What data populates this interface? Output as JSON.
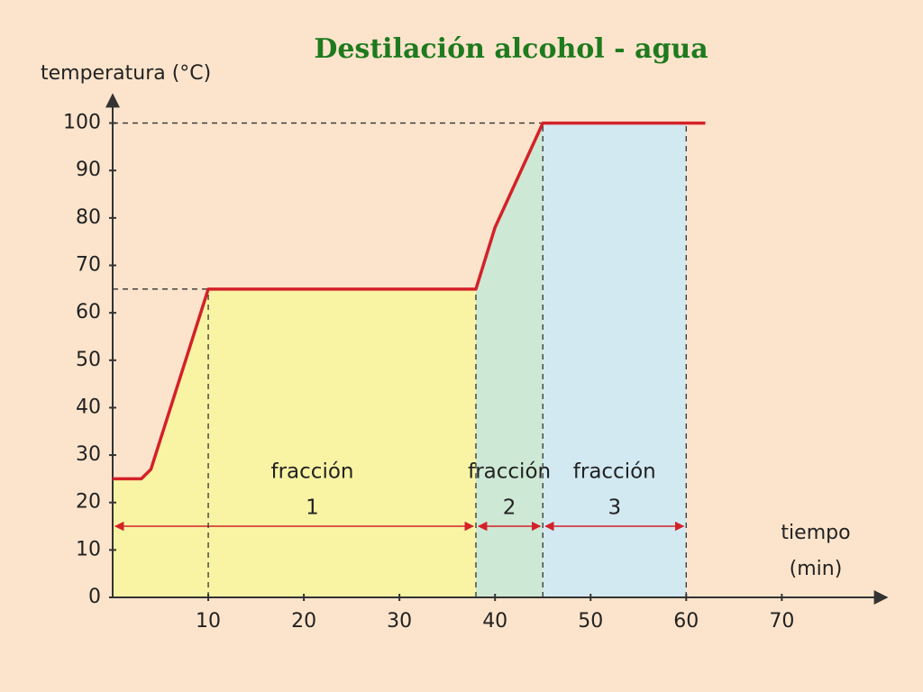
{
  "chart_data": {
    "type": "line",
    "title": "Destilación alcohol - agua",
    "y_label": "temperatura (°C)",
    "x_label": [
      "tiempo",
      "(min)"
    ],
    "x": [
      0,
      3,
      4,
      10,
      38,
      40,
      45,
      62
    ],
    "series": [
      {
        "name": "temperatura",
        "color": "#d42128",
        "values": [
          25,
          25,
          27,
          65,
          65,
          78,
          100,
          100
        ]
      }
    ],
    "xlim": [
      0,
      81
    ],
    "ylim": [
      0,
      106
    ],
    "xticks": [
      10,
      20,
      30,
      40,
      50,
      60,
      70
    ],
    "yticks": [
      0,
      10,
      20,
      30,
      40,
      50,
      60,
      70,
      80,
      90,
      100
    ],
    "regions": [
      {
        "lines": [
          "fracción",
          "1"
        ],
        "start": 0,
        "end": 38,
        "color": "#f8f4a4"
      },
      {
        "lines": [
          "fracción",
          "2"
        ],
        "start": 38,
        "end": 45,
        "color": "#cde8d4"
      },
      {
        "lines": [
          "fracción",
          "3"
        ],
        "start": 45,
        "end": 60,
        "color": "#d2e9f2"
      }
    ],
    "region_arrow_y": 15,
    "guides": [
      {
        "x": 10,
        "y": 65,
        "horizontal": true
      },
      {
        "x": 38,
        "y": 65,
        "horizontal": false
      },
      {
        "x": 45,
        "y": 100,
        "horizontal": true
      },
      {
        "x": 60,
        "y": 100,
        "horizontal": false
      }
    ]
  }
}
